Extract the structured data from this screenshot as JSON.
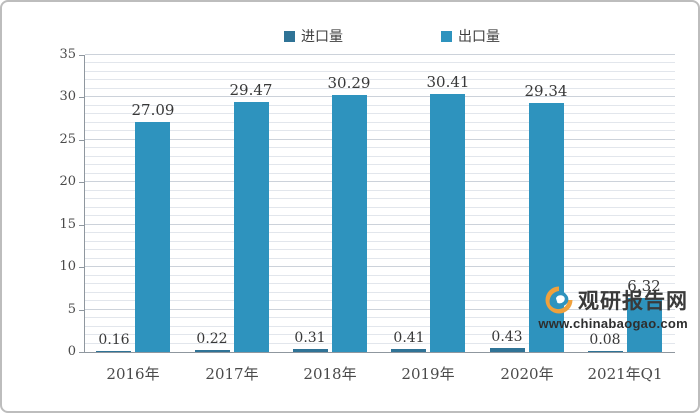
{
  "chart_data": {
    "type": "bar",
    "categories": [
      "2016年",
      "2017年",
      "2018年",
      "2019年",
      "2020年",
      "2021年Q1"
    ],
    "series": [
      {
        "name": "进口量",
        "color": "#2f7396",
        "values": [
          0.16,
          0.22,
          0.31,
          0.41,
          0.43,
          0.08
        ]
      },
      {
        "name": "出口量",
        "color": "#2e93be",
        "values": [
          27.09,
          29.47,
          30.29,
          30.41,
          29.34,
          6.32
        ]
      }
    ],
    "title": "",
    "xlabel": "",
    "ylabel": "",
    "ylim": [
      0,
      35
    ],
    "yticks": [
      0,
      5,
      10,
      15,
      20,
      25,
      30,
      35
    ],
    "grid": "horizontal minor gridlines every 1 unit, major every 5",
    "legend_position": "top-center",
    "data_labels": true
  },
  "colors": {
    "grid_minor": "#e2e6ec",
    "grid_major": "#ccd2da",
    "axis": "#8f979f",
    "label_text": "#383838",
    "logo_orange": "#f0a13c",
    "logo_teal": "#2e93be"
  },
  "watermark": {
    "site_name": "观研报告网",
    "url": "www.chinabaogao.com"
  }
}
